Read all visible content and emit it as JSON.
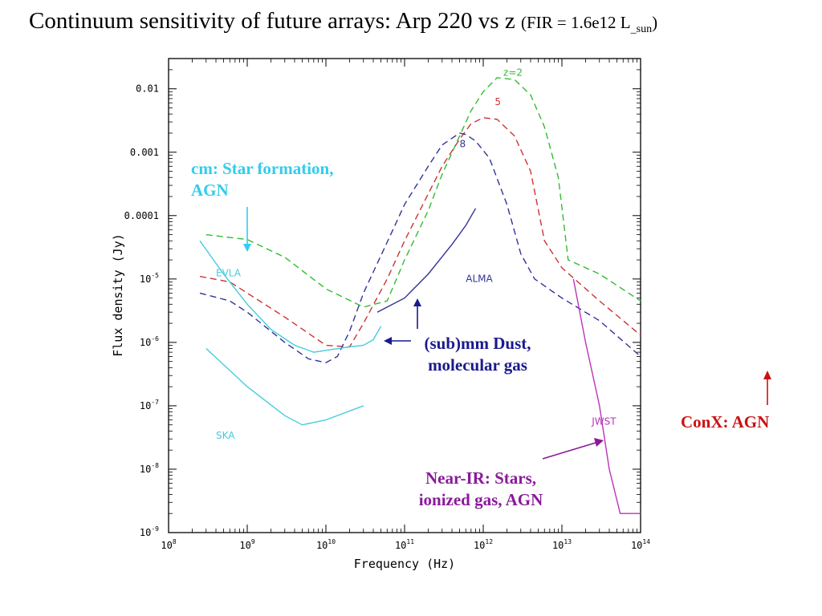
{
  "title": {
    "main": "Continuum sensitivity of future arrays: Arp 220 vs z ",
    "paren_open": "(FIR = 1.6e12 L",
    "sub": "_sun",
    "paren_close": ")"
  },
  "annotations": {
    "cm": [
      "cm: Star formation,",
      "AGN"
    ],
    "submm": [
      "(sub)mm Dust,",
      "molecular gas"
    ],
    "nearir": [
      "Near-IR: Stars,",
      "ionized gas,  AGN"
    ],
    "conx": "ConX: AGN"
  },
  "colors": {
    "cm": "#33ccee",
    "submm": "#1a1a8c",
    "nearir": "#8a1a9a",
    "conx": "#cc1111",
    "z2": "#33bb33",
    "z5": "#cc3333",
    "z8": "#333399",
    "evla": "#44ccdd",
    "ska": "#44ccdd",
    "alma": "#333399",
    "jwst": "#bb33bb"
  },
  "chart_data": {
    "type": "line",
    "xlabel": "Frequency (Hz)",
    "ylabel": "Flux density (Jy)",
    "x_scale": "log",
    "y_scale": "log",
    "xlim": [
      100000000.0,
      100000000000000.0
    ],
    "ylim": [
      1e-09,
      0.03
    ],
    "x_ticks": [
      {
        "value": 100000000.0,
        "base": "10",
        "exp": "8"
      },
      {
        "value": 1000000000.0,
        "base": "10",
        "exp": "9"
      },
      {
        "value": 10000000000.0,
        "base": "10",
        "exp": "10"
      },
      {
        "value": 100000000000.0,
        "base": "10",
        "exp": "11"
      },
      {
        "value": 1000000000000.0,
        "base": "10",
        "exp": "12"
      },
      {
        "value": 10000000000000.0,
        "base": "10",
        "exp": "13"
      },
      {
        "value": 100000000000000.0,
        "base": "10",
        "exp": "14"
      }
    ],
    "y_ticks": [
      {
        "value": 0.01,
        "label": "0.01"
      },
      {
        "value": 0.001,
        "label": "0.001"
      },
      {
        "value": 0.0001,
        "label": "0.0001"
      },
      {
        "value": 1e-05,
        "base": "10",
        "exp": "-5"
      },
      {
        "value": 1e-06,
        "base": "10",
        "exp": "-6"
      },
      {
        "value": 1e-07,
        "base": "10",
        "exp": "-7"
      },
      {
        "value": 1e-08,
        "base": "10",
        "exp": "-8"
      },
      {
        "value": 1e-09,
        "base": "10",
        "exp": "-9"
      }
    ],
    "series": [
      {
        "name": "z=2",
        "style": "dashed",
        "color": "#33bb33",
        "x": [
          300000000.0,
          1000000000.0,
          3000000000.0,
          10000000000.0,
          30000000000.0,
          60000000000.0,
          100000000000.0,
          200000000000.0,
          300000000000.0,
          500000000000.0,
          700000000000.0,
          1000000000000.0,
          1500000000000.0,
          2500000000000.0,
          4000000000000.0,
          6000000000000.0,
          9000000000000.0,
          12000000000000.0,
          30000000000000.0,
          100000000000000.0
        ],
        "y": [
          5e-05,
          4.2e-05,
          2.2e-05,
          7e-06,
          3.6e-06,
          4.5e-06,
          2e-05,
          0.00012,
          0.00045,
          0.0018,
          0.0045,
          0.009,
          0.015,
          0.014,
          0.008,
          0.0025,
          0.0004,
          2e-05,
          1.2e-05,
          4.5e-06
        ]
      },
      {
        "name": "5",
        "style": "dashed",
        "color": "#cc3333",
        "x": [
          250000000.0,
          600000000.0,
          1000000000.0,
          3000000000.0,
          10000000000.0,
          20000000000.0,
          30000000000.0,
          60000000000.0,
          100000000000.0,
          200000000000.0,
          300000000000.0,
          500000000000.0,
          700000000000.0,
          1000000000000.0,
          1500000000000.0,
          2500000000000.0,
          4000000000000.0,
          6000000000000.0,
          10000000000000.0,
          30000000000000.0,
          100000000000000.0
        ],
        "y": [
          1.1e-05,
          9e-06,
          6e-06,
          2.5e-06,
          9e-07,
          8.5e-07,
          2e-06,
          1e-05,
          4e-05,
          0.00022,
          0.0006,
          0.0016,
          0.0028,
          0.0035,
          0.0033,
          0.0018,
          0.0005,
          4e-05,
          1.5e-05,
          4.5e-06,
          1.3e-06
        ]
      },
      {
        "name": "8",
        "style": "dashed",
        "color": "#333399",
        "x": [
          250000000.0,
          600000000.0,
          1000000000.0,
          3000000000.0,
          6000000000.0,
          10000000000.0,
          14000000000.0,
          20000000000.0,
          30000000000.0,
          60000000000.0,
          100000000000.0,
          200000000000.0,
          300000000000.0,
          500000000000.0,
          600000000000.0,
          800000000000.0,
          1200000000000.0,
          2000000000000.0,
          3000000000000.0,
          4500000000000.0,
          10000000000000.0,
          30000000000000.0,
          100000000000000.0
        ],
        "y": [
          6e-06,
          4.5e-06,
          3e-06,
          1e-06,
          5.5e-07,
          4.8e-07,
          6e-07,
          1.5e-06,
          6e-06,
          3.8e-05,
          0.00015,
          0.0006,
          0.0013,
          0.002,
          0.0019,
          0.0015,
          0.0008,
          0.00015,
          2.5e-05,
          1e-05,
          5e-06,
          2.2e-06,
          6e-07
        ]
      },
      {
        "name": "EVLA",
        "style": "solid",
        "color": "#44ccdd",
        "x": [
          250000000.0,
          500000000.0,
          1000000000.0,
          2000000000.0,
          4000000000.0,
          7000000000.0,
          10000000000.0,
          20000000000.0,
          30000000000.0,
          40000000000.0,
          50000000000.0
        ],
        "y": [
          4e-05,
          1.2e-05,
          4e-06,
          1.6e-06,
          9e-07,
          7e-07,
          7.5e-07,
          8.5e-07,
          9e-07,
          1.1e-06,
          1.8e-06
        ]
      },
      {
        "name": "SKA",
        "style": "solid",
        "color": "#44ccdd",
        "x": [
          300000000.0,
          1000000000.0,
          3000000000.0,
          5000000000.0,
          10000000000.0,
          30000000000.0
        ],
        "y": [
          8e-07,
          2e-07,
          7e-08,
          5e-08,
          6e-08,
          1e-07
        ]
      },
      {
        "name": "ALMA",
        "style": "solid",
        "color": "#333399",
        "x": [
          45000000000.0,
          100000000000.0,
          200000000000.0,
          400000000000.0,
          600000000000.0,
          800000000000.0
        ],
        "y": [
          3e-06,
          5e-06,
          1.2e-05,
          3.5e-05,
          7e-05,
          0.00013
        ]
      },
      {
        "name": "JWST",
        "style": "solid",
        "color": "#bb33bb",
        "x": [
          14000000000000.0,
          20000000000000.0,
          30000000000000.0,
          40000000000000.0,
          55000000000000.0,
          100000000000000.0
        ],
        "y": [
          1e-05,
          1e-06,
          1e-07,
          1e-08,
          2e-09,
          2e-09
        ]
      }
    ],
    "series_labels": [
      {
        "text": "z=2",
        "series": "z=2",
        "x": 1800000000000.0,
        "y": 0.016
      },
      {
        "text": "5",
        "series": "5",
        "x": 1400000000000.0,
        "y": 0.0055
      },
      {
        "text": "8",
        "series": "8",
        "x": 500000000000.0,
        "y": 0.0012
      },
      {
        "text": "EVLA",
        "series": "EVLA",
        "x": 400000000.0,
        "y": 1.1e-05
      },
      {
        "text": "SKA",
        "series": "SKA",
        "x": 400000000.0,
        "y": 3e-08
      },
      {
        "text": "ALMA",
        "series": "ALMA",
        "x": 600000000000.0,
        "y": 9e-06
      },
      {
        "text": "JWST",
        "series": "JWST",
        "x": 24000000000000.0,
        "y": 5e-08
      }
    ]
  }
}
